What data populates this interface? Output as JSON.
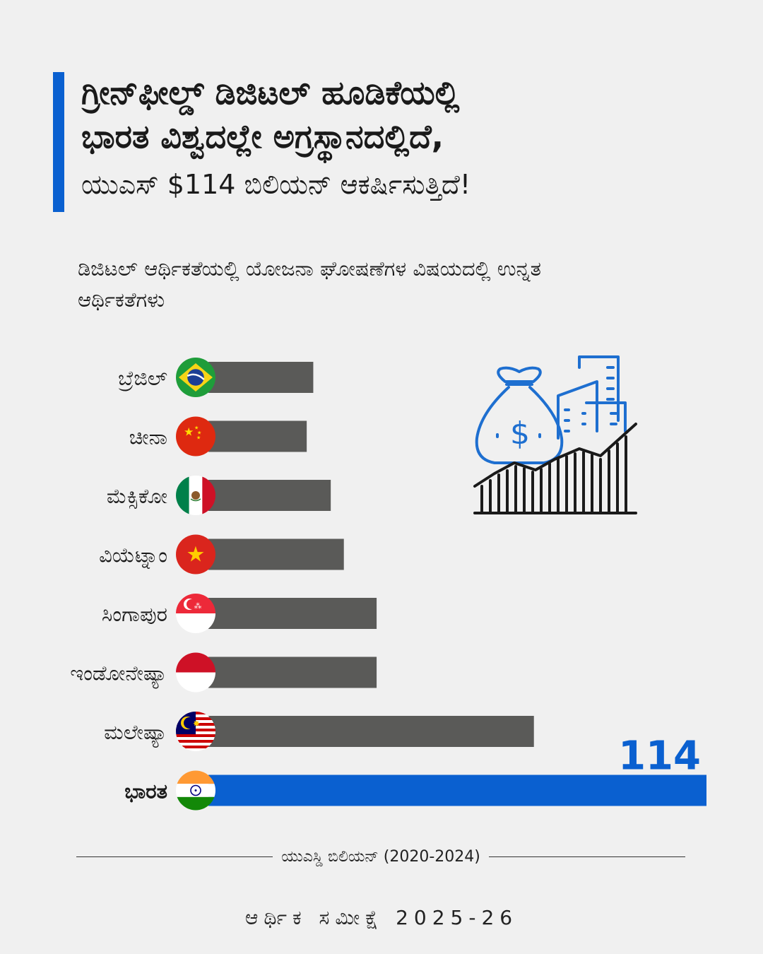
{
  "title": {
    "line1": "ಗ್ರೀನ್‌ಫೀಲ್ಡ್ ಡಿಜಿಟಲ್ ಹೂಡಿಕೆಯಲ್ಲಿ",
    "line2": "ಭಾರತ ವಿಶ್ವದಲ್ಲೇ ಅಗ್ರಸ್ಥಾನದಲ್ಲಿದೆ,",
    "line3": "ಯುಎಸ್ $114 ಬಿಲಿಯನ್ ಆಕರ್ಷಿಸುತ್ತಿದೆ!"
  },
  "subtitle": "ಡಿಜಿಟಲ್ ಆರ್ಥಿಕತೆಯಲ್ಲಿ ಯೋಜನಾ ಘೋಷಣೆಗಳ ವಿಷಯದಲ್ಲಿ ಉನ್ನತ ಆರ್ಥಿಕತೆಗಳು",
  "chart_data": {
    "type": "bar",
    "orientation": "horizontal",
    "categories": [
      "ಬ್ರೆಜಿಲ್",
      "ಚೀನಾ",
      "ಮೆಕ್ಸಿಕೋ",
      "ವಿಯೆಟ್ನಾಂ",
      "ಸಿಂಗಾಪುರ",
      "ಇಂಡೋನೇಷ್ಯಾ",
      "ಮಲೇಷ್ಯಾ",
      "ಭಾರತ"
    ],
    "flags": [
      "brazil-flag",
      "china-flag",
      "mexico-flag",
      "vietnam-flag",
      "singapore-flag",
      "indonesia-flag",
      "malaysia-flag",
      "india-flag"
    ],
    "values": [
      24,
      22.5,
      28,
      31,
      38.5,
      38.5,
      74.5,
      114
    ],
    "highlight": "ಭಾರತ",
    "value_label": "114",
    "xlim": [
      0,
      114
    ],
    "unit_label": "ಯುಎಸ್ಡಿ ಬಿಲಿಯನ್ (2020-2024)",
    "colors": {
      "bar": "#5a5a58",
      "highlight": "#0a60d0"
    }
  },
  "illustration": {
    "icon": "money-bag-city-growth-icon",
    "color_outline": "#1e6fd0",
    "color_bars": "#1a1a1a"
  },
  "footer": "ಆರ್ಥಿಕ ಸಮೀಕ್ಷೆ 2025-26"
}
